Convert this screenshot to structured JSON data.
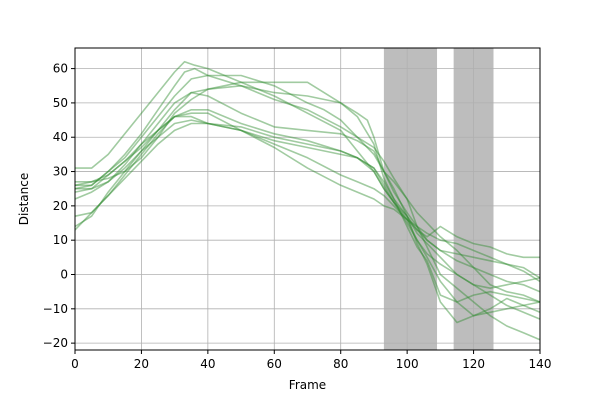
{
  "chart_data": {
    "type": "line",
    "title": "",
    "xlabel": "Frame",
    "ylabel": "Distance",
    "xlim": [
      0,
      140
    ],
    "ylim": [
      -22,
      66
    ],
    "xticks": [
      0,
      20,
      40,
      60,
      80,
      100,
      120,
      140
    ],
    "yticks": [
      -20,
      -10,
      0,
      10,
      20,
      30,
      40,
      50,
      60
    ],
    "grid": true,
    "legend": "none",
    "line_color": "#2e8b2e",
    "shade_color": "#bdbdbd",
    "shaded_regions": [
      [
        93,
        109
      ],
      [
        114,
        126
      ]
    ],
    "series": [
      {
        "x": [
          0,
          5,
          10,
          15,
          20,
          25,
          30,
          33,
          36,
          40,
          50,
          60,
          70,
          80,
          85,
          90,
          93,
          96,
          100,
          103,
          106,
          110,
          115,
          120,
          125,
          130,
          135,
          140
        ],
        "y": [
          26,
          26,
          30,
          35,
          41,
          48,
          55,
          59,
          60,
          58,
          55,
          53,
          52,
          50,
          46,
          38,
          28,
          22,
          17,
          12,
          9,
          5,
          0,
          -3,
          -4,
          -3,
          -2,
          -1
        ]
      },
      {
        "x": [
          0,
          5,
          10,
          15,
          20,
          25,
          30,
          33,
          36,
          40,
          50,
          60,
          70,
          80,
          85,
          90,
          93,
          96,
          100,
          103,
          106,
          110,
          115,
          120,
          125,
          130,
          135,
          140
        ],
        "y": [
          31,
          31,
          35,
          41,
          47,
          53,
          59,
          62,
          61,
          60,
          56,
          52,
          47,
          42,
          36,
          30,
          25,
          21,
          16,
          10,
          5,
          -2,
          -8,
          -12,
          -10,
          -7,
          -9,
          -11
        ]
      },
      {
        "x": [
          0,
          5,
          10,
          15,
          20,
          25,
          30,
          35,
          40,
          50,
          60,
          70,
          75,
          80,
          85,
          90,
          93,
          96,
          100,
          103,
          106,
          110,
          115,
          120,
          125,
          130,
          135,
          140
        ],
        "y": [
          25,
          26,
          30,
          34,
          40,
          46,
          52,
          57,
          58,
          58,
          55,
          50,
          48,
          45,
          40,
          35,
          30,
          27,
          22,
          18,
          15,
          11,
          7,
          2,
          -3,
          -5,
          -6,
          -8
        ]
      },
      {
        "x": [
          0,
          5,
          10,
          15,
          20,
          25,
          30,
          35,
          40,
          50,
          60,
          70,
          80,
          85,
          88,
          90,
          93,
          96,
          100,
          103,
          106,
          110,
          115,
          120,
          125,
          130,
          135,
          140
        ],
        "y": [
          24,
          25,
          27,
          31,
          36,
          42,
          48,
          53,
          54,
          56,
          56,
          56,
          50,
          47,
          45,
          40,
          30,
          24,
          18,
          14,
          10,
          7,
          6,
          5,
          4,
          3,
          2,
          -1
        ]
      },
      {
        "x": [
          0,
          5,
          10,
          15,
          20,
          25,
          30,
          35,
          40,
          50,
          60,
          70,
          80,
          85,
          90,
          93,
          96,
          100,
          103,
          106,
          110,
          115,
          120,
          125,
          130,
          135,
          140
        ],
        "y": [
          27,
          27,
          28,
          30,
          34,
          40,
          47,
          51,
          54,
          55,
          51,
          48,
          43,
          40,
          37,
          33,
          28,
          22,
          14,
          8,
          0,
          -4,
          -8,
          -12,
          -15,
          -17,
          -19
        ]
      },
      {
        "x": [
          0,
          5,
          10,
          15,
          20,
          25,
          30,
          35,
          40,
          50,
          60,
          70,
          80,
          85,
          90,
          93,
          96,
          100,
          103,
          106,
          110,
          115,
          120,
          125,
          130,
          135,
          140
        ],
        "y": [
          22,
          24,
          27,
          32,
          38,
          44,
          50,
          53,
          52,
          47,
          43,
          42,
          41,
          39,
          36,
          30,
          25,
          17,
          9,
          3,
          -8,
          -14,
          -12,
          -11,
          -10,
          -9,
          -8
        ]
      },
      {
        "x": [
          0,
          5,
          10,
          15,
          20,
          25,
          30,
          35,
          40,
          50,
          60,
          70,
          80,
          85,
          90,
          93,
          96,
          100,
          103,
          106,
          110,
          115,
          120,
          125,
          130,
          135,
          140
        ],
        "y": [
          17,
          18,
          23,
          29,
          35,
          41,
          46,
          48,
          48,
          44,
          41,
          39,
          36,
          34,
          31,
          26,
          21,
          15,
          10,
          6,
          3,
          0,
          -3,
          -6,
          -9,
          -11,
          -13
        ]
      },
      {
        "x": [
          0,
          5,
          10,
          15,
          20,
          25,
          30,
          35,
          40,
          50,
          60,
          70,
          80,
          85,
          90,
          93,
          96,
          100,
          103,
          106,
          110,
          115,
          120,
          125,
          130,
          135,
          140
        ],
        "y": [
          13,
          18,
          23,
          28,
          33,
          38,
          42,
          44,
          44,
          43,
          40,
          38,
          36,
          34,
          30,
          25,
          21,
          17,
          13,
          10,
          7,
          4,
          2,
          0,
          -2,
          -3,
          -5
        ]
      },
      {
        "x": [
          0,
          5,
          10,
          15,
          20,
          25,
          30,
          35,
          40,
          50,
          60,
          70,
          80,
          85,
          90,
          93,
          96,
          100,
          103,
          106,
          110,
          115,
          120,
          125,
          130,
          135,
          140
        ],
        "y": [
          14,
          17,
          24,
          30,
          36,
          40,
          44,
          45,
          44,
          42,
          39,
          37,
          35,
          34,
          31,
          27,
          22,
          14,
          8,
          4,
          -6,
          -8,
          -6,
          -5,
          -6,
          -7,
          -8
        ]
      },
      {
        "x": [
          0,
          5,
          10,
          15,
          20,
          25,
          30,
          35,
          40,
          50,
          60,
          70,
          80,
          85,
          90,
          93,
          96,
          100,
          103,
          106,
          110,
          115,
          120,
          125,
          130,
          135,
          140
        ],
        "y": [
          25,
          25,
          29,
          33,
          37,
          42,
          46,
          46,
          44,
          42,
          38,
          34,
          29,
          27,
          25,
          23,
          20,
          16,
          13,
          11,
          14,
          11,
          9,
          8,
          6,
          5,
          5
        ]
      },
      {
        "x": [
          0,
          5,
          10,
          15,
          20,
          25,
          30,
          35,
          40,
          50,
          60,
          70,
          80,
          85,
          90,
          93,
          96,
          100,
          103,
          106,
          110,
          115,
          120,
          125,
          130,
          135,
          140
        ],
        "y": [
          26,
          27,
          29,
          33,
          38,
          42,
          46,
          47,
          47,
          42,
          37,
          31,
          26,
          24,
          22,
          20,
          19,
          16,
          14,
          12,
          10,
          9,
          7,
          5,
          3,
          1,
          -2
        ]
      }
    ]
  }
}
